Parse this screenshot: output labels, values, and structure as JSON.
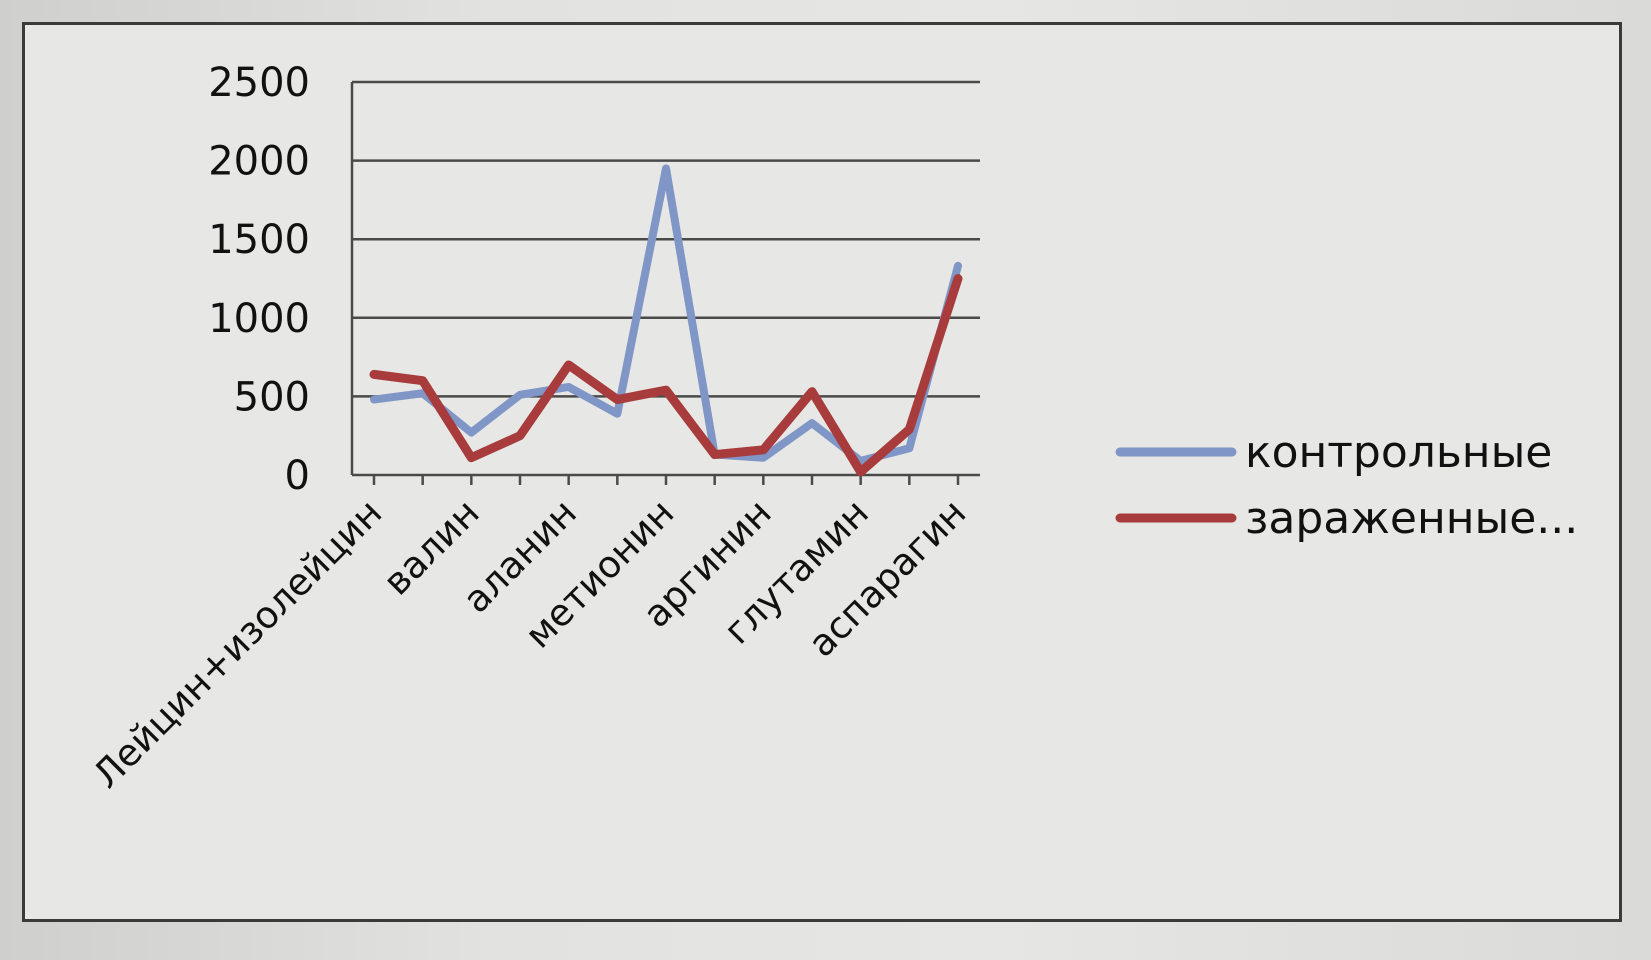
{
  "chart_data": {
    "type": "line",
    "title": "",
    "xlabel": "",
    "ylabel": "",
    "ylim": [
      0,
      2500
    ],
    "y_ticks": [
      "2500",
      "2000",
      "1500",
      "1000",
      "500",
      "0"
    ],
    "grid": true,
    "legend_position": "right",
    "categories": [
      "Лейцин+изолейцин",
      "",
      "валин",
      "",
      "аланин",
      "",
      "метионин",
      "",
      "аргинин",
      "",
      "глутамин",
      "",
      "аспарагин"
    ],
    "series": [
      {
        "name": "контрольные",
        "color": "#7f96c7",
        "values": [
          480,
          520,
          270,
          510,
          560,
          390,
          1950,
          130,
          110,
          330,
          90,
          170,
          1330
        ]
      },
      {
        "name": "зараженные...",
        "color": "#a83c3c",
        "values": [
          640,
          600,
          110,
          250,
          700,
          480,
          540,
          130,
          160,
          530,
          20,
          290,
          1250
        ]
      }
    ]
  }
}
